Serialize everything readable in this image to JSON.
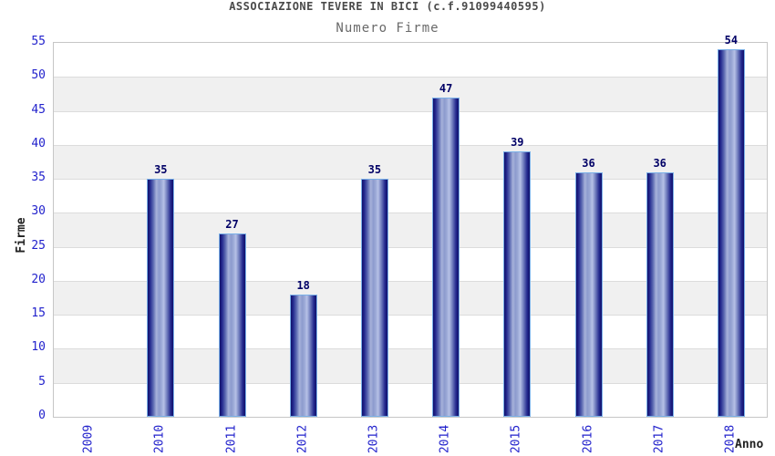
{
  "page": {
    "title": "ASSOCIAZIONE TEVERE IN BICI (c.f.91099440595)",
    "subtitle": "Numero Firme"
  },
  "chart_data": {
    "type": "bar",
    "title": "ASSOCIAZIONE TEVERE IN BICI (c.f.91099440595)",
    "subtitle": "Numero Firme",
    "categories": [
      "2009",
      "2010",
      "2011",
      "2012",
      "2013",
      "2014",
      "2015",
      "2016",
      "2017",
      "2018"
    ],
    "values": [
      0,
      35,
      27,
      18,
      35,
      47,
      39,
      36,
      36,
      54
    ],
    "xlabel": "Anno",
    "ylabel": "Firme",
    "ylim": [
      0,
      55
    ],
    "ytick_step": 5,
    "ytick_labels": [
      "0",
      "5",
      "10",
      "15",
      "20",
      "25",
      "30",
      "35",
      "40",
      "45",
      "50",
      "55"
    ],
    "grid": "horizontal gridlines every 5 units with alternating white/light-gray bands",
    "legend_position": "none",
    "bar_style": "vertical cylinder gradient, navy edges with light highlight, light-blue outline",
    "colors": {
      "bar_edge_dark": "#10106a",
      "bar_highlight": "#b6c1e6",
      "bar_border": "#7ab0e8",
      "tick_labels": "#2222cc",
      "value_labels": "#000066",
      "title": "#4a4a4a",
      "subtitle": "#6a6a6a",
      "axis_titles": "#222222",
      "band_gray": "#f0f0f0",
      "grid_line": "#dcdcdc",
      "plot_border": "#c6c6c6",
      "background": "#ffffff"
    }
  }
}
